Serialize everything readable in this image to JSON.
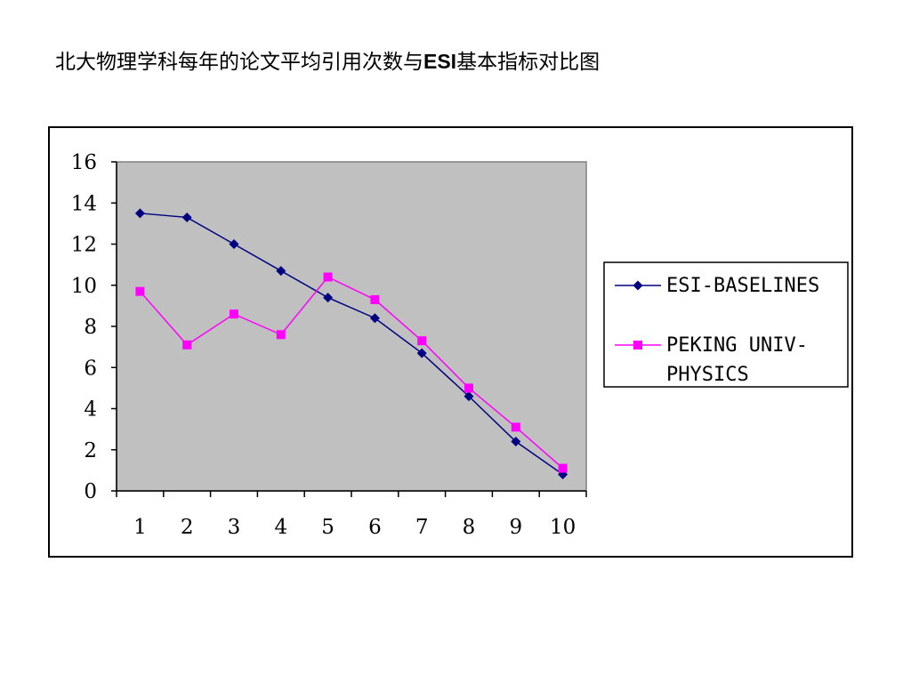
{
  "page": {
    "title_prefix": "北大物理学科每年的论文平均引用次数与",
    "title_bold": "ESI",
    "title_suffix": "基本指标对比图"
  },
  "chart_data": {
    "type": "line",
    "x": [
      "1",
      "2",
      "3",
      "4",
      "5",
      "6",
      "7",
      "8",
      "9",
      "10"
    ],
    "ylim": [
      0,
      16
    ],
    "yticks": [
      0,
      2,
      4,
      6,
      8,
      10,
      12,
      14,
      16
    ],
    "grid": false,
    "plot_background": "#c0c0c0",
    "legend_position": "right",
    "series": [
      {
        "name": "ESI-BASELINES",
        "color": "#000080",
        "marker": "diamond",
        "values": [
          13.5,
          13.3,
          12.0,
          10.7,
          9.4,
          8.4,
          6.7,
          4.6,
          2.4,
          0.8
        ]
      },
      {
        "name": "PEKING UNIV-PHYSICS",
        "legend_lines": [
          "PEKING UNIV-",
          "PHYSICS"
        ],
        "color": "#ff00ff",
        "marker": "square",
        "values": [
          9.7,
          7.1,
          8.6,
          7.6,
          10.4,
          9.3,
          7.3,
          5.0,
          3.1,
          1.1
        ]
      }
    ]
  }
}
